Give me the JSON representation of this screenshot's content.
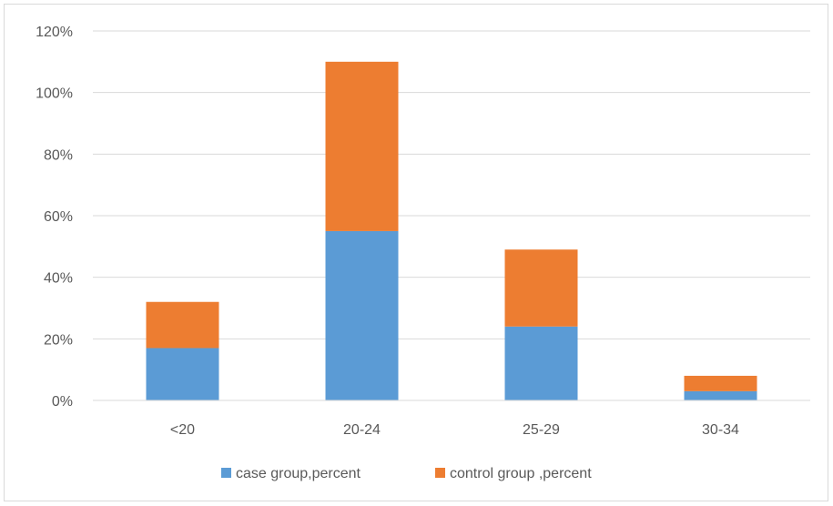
{
  "chart_data": {
    "type": "bar",
    "stacked": true,
    "title": "",
    "xlabel": "",
    "ylabel": "",
    "categories": [
      "<20",
      "20-24",
      "25-29",
      "30-34"
    ],
    "series": [
      {
        "name": "case group,percent",
        "color": "#5b9bd5",
        "values": [
          17,
          55,
          24,
          3
        ]
      },
      {
        "name": "control group ,percent",
        "color": "#ed7d31",
        "values": [
          15,
          55,
          25,
          5
        ]
      }
    ],
    "ylim": [
      0,
      120
    ],
    "yticks": [
      0,
      20,
      40,
      60,
      80,
      100,
      120
    ],
    "ytick_labels": [
      "0%",
      "20%",
      "40%",
      "60%",
      "80%",
      "100%",
      "120%"
    ],
    "grid": true,
    "legend_position": "bottom"
  }
}
